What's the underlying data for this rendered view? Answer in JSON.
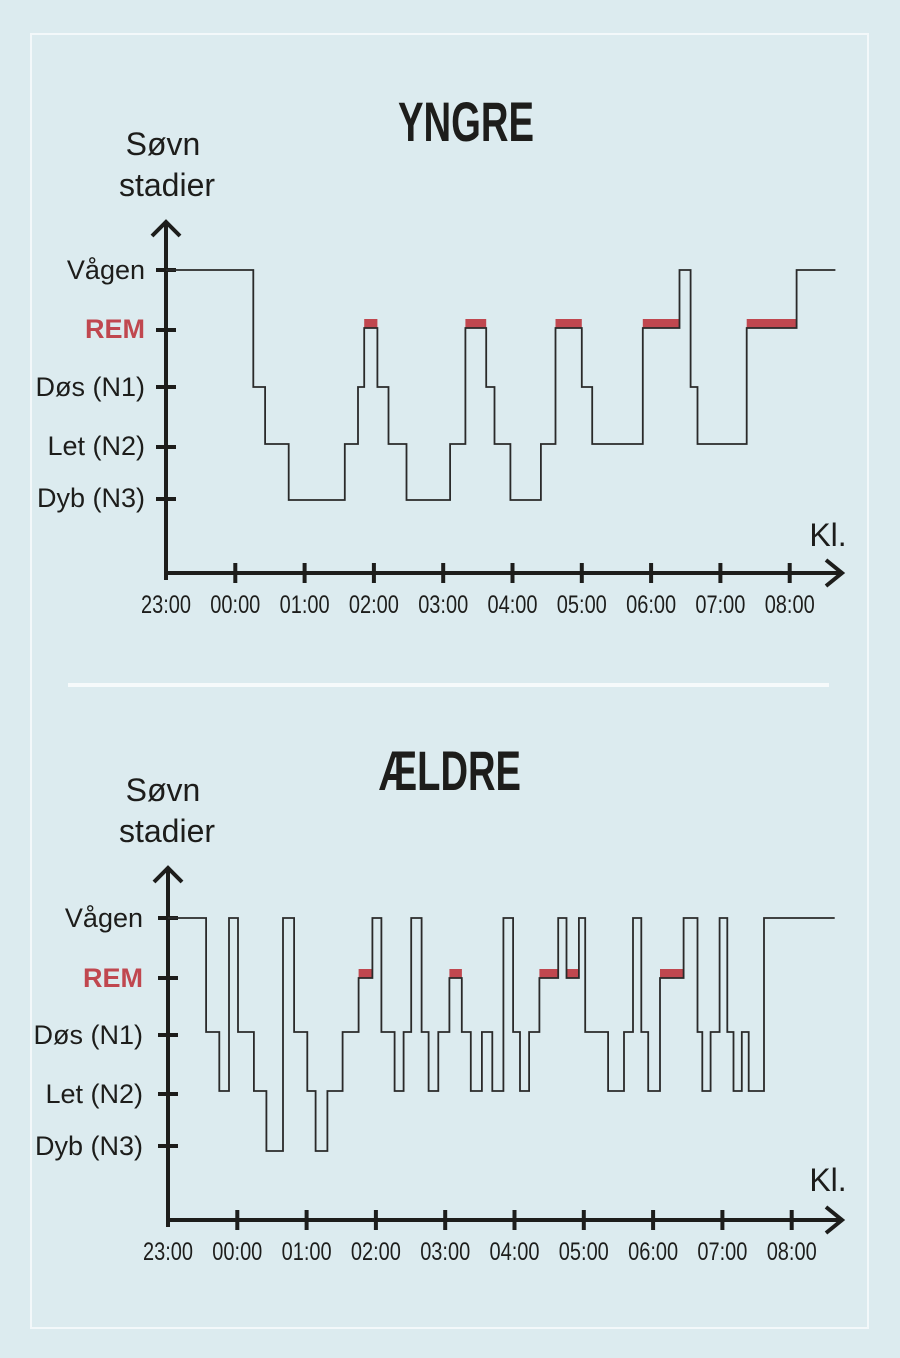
{
  "colors": {
    "background": "#dcebef",
    "ink": "#1d1d1b",
    "rem": "#c0474f",
    "line": "#2a2a2a",
    "divider": "#f6fafb"
  },
  "y_axis_title": [
    "Søvn",
    "stadier"
  ],
  "x_axis_label": "Kl.",
  "stage_labels": [
    "Vågen",
    "REM",
    "Døs (N1)",
    "Let (N2)",
    "Dyb (N3)"
  ],
  "time_ticks": [
    "23:00",
    "00:00",
    "01:00",
    "02:00",
    "03:00",
    "04:00",
    "05:00",
    "06:00",
    "07:00",
    "08:00"
  ],
  "chart_data": [
    {
      "type": "line",
      "title": "YNGRE",
      "ylabel": "Søvn stadier",
      "xlabel": "Kl.",
      "y_categories": [
        "Dyb (N3)",
        "Let (N2)",
        "Døs (N1)",
        "REM",
        "Vågen"
      ],
      "x_ticks": [
        "23:00",
        "00:00",
        "01:00",
        "02:00",
        "03:00",
        "04:00",
        "05:00",
        "06:00",
        "07:00",
        "08:00"
      ],
      "step": true,
      "segments_hours_from_2300": [
        {
          "start": 0.0,
          "end": 1.26,
          "stage": "Vågen"
        },
        {
          "start": 1.26,
          "end": 1.43,
          "stage": "Døs (N1)"
        },
        {
          "start": 1.43,
          "end": 1.77,
          "stage": "Let (N2)"
        },
        {
          "start": 1.77,
          "end": 2.58,
          "stage": "Dyb (N3)"
        },
        {
          "start": 2.58,
          "end": 2.77,
          "stage": "Let (N2)"
        },
        {
          "start": 2.77,
          "end": 2.86,
          "stage": "Døs (N1)"
        },
        {
          "start": 2.86,
          "end": 3.05,
          "stage": "REM"
        },
        {
          "start": 3.05,
          "end": 3.21,
          "stage": "Døs (N1)"
        },
        {
          "start": 3.21,
          "end": 3.47,
          "stage": "Let (N2)"
        },
        {
          "start": 3.47,
          "end": 4.1,
          "stage": "Dyb (N3)"
        },
        {
          "start": 4.1,
          "end": 4.32,
          "stage": "Let (N2)"
        },
        {
          "start": 4.32,
          "end": 4.62,
          "stage": "REM"
        },
        {
          "start": 4.62,
          "end": 4.74,
          "stage": "Døs (N1)"
        },
        {
          "start": 4.74,
          "end": 4.97,
          "stage": "Let (N2)"
        },
        {
          "start": 4.97,
          "end": 5.41,
          "stage": "Dyb (N3)"
        },
        {
          "start": 5.41,
          "end": 5.62,
          "stage": "Let (N2)"
        },
        {
          "start": 5.62,
          "end": 6.0,
          "stage": "REM"
        },
        {
          "start": 6.0,
          "end": 6.15,
          "stage": "Døs (N1)"
        },
        {
          "start": 6.15,
          "end": 6.88,
          "stage": "Let (N2)"
        },
        {
          "start": 6.88,
          "end": 7.41,
          "stage": "REM"
        },
        {
          "start": 7.41,
          "end": 7.57,
          "stage": "Vågen"
        },
        {
          "start": 7.57,
          "end": 7.67,
          "stage": "Døs (N1)"
        },
        {
          "start": 7.67,
          "end": 8.38,
          "stage": "Let (N2)"
        },
        {
          "start": 8.38,
          "end": 9.1,
          "stage": "REM"
        },
        {
          "start": 9.1,
          "end": 9.66,
          "stage": "Vågen"
        }
      ]
    },
    {
      "type": "line",
      "title": "ÆLDRE",
      "ylabel": "Søvn stadier",
      "xlabel": "Kl.",
      "y_categories": [
        "Dyb (N3)",
        "Let (N2)",
        "Døs (N1)",
        "REM",
        "Vågen"
      ],
      "x_ticks": [
        "23:00",
        "00:00",
        "01:00",
        "02:00",
        "03:00",
        "04:00",
        "05:00",
        "06:00",
        "07:00",
        "08:00"
      ],
      "step": true,
      "segments_hours_from_2300": [
        {
          "start": 0.0,
          "end": 0.55,
          "stage": "Vågen"
        },
        {
          "start": 0.55,
          "end": 0.74,
          "stage": "Døs (N1)"
        },
        {
          "start": 0.74,
          "end": 0.88,
          "stage": "Let (N2)"
        },
        {
          "start": 0.88,
          "end": 1.01,
          "stage": "Vågen"
        },
        {
          "start": 1.01,
          "end": 1.24,
          "stage": "Døs (N1)"
        },
        {
          "start": 1.24,
          "end": 1.42,
          "stage": "Let (N2)"
        },
        {
          "start": 1.42,
          "end": 1.66,
          "stage": "Dyb (N3)"
        },
        {
          "start": 1.66,
          "end": 1.82,
          "stage": "Vågen"
        },
        {
          "start": 1.82,
          "end": 2.01,
          "stage": "Døs (N1)"
        },
        {
          "start": 2.01,
          "end": 2.13,
          "stage": "Let (N2)"
        },
        {
          "start": 2.13,
          "end": 2.3,
          "stage": "Dyb (N3)"
        },
        {
          "start": 2.3,
          "end": 2.52,
          "stage": "Let (N2)"
        },
        {
          "start": 2.52,
          "end": 2.75,
          "stage": "Døs (N1)"
        },
        {
          "start": 2.75,
          "end": 2.95,
          "stage": "REM"
        },
        {
          "start": 2.95,
          "end": 3.08,
          "stage": "Vågen"
        },
        {
          "start": 3.08,
          "end": 3.27,
          "stage": "Døs (N1)"
        },
        {
          "start": 3.27,
          "end": 3.4,
          "stage": "Let (N2)"
        },
        {
          "start": 3.4,
          "end": 3.51,
          "stage": "Døs (N1)"
        },
        {
          "start": 3.51,
          "end": 3.66,
          "stage": "Vågen"
        },
        {
          "start": 3.66,
          "end": 3.76,
          "stage": "Døs (N1)"
        },
        {
          "start": 3.76,
          "end": 3.9,
          "stage": "Let (N2)"
        },
        {
          "start": 3.9,
          "end": 4.06,
          "stage": "Døs (N1)"
        },
        {
          "start": 4.06,
          "end": 4.24,
          "stage": "REM"
        },
        {
          "start": 4.24,
          "end": 4.37,
          "stage": "Døs (N1)"
        },
        {
          "start": 4.37,
          "end": 4.53,
          "stage": "Let (N2)"
        },
        {
          "start": 4.53,
          "end": 4.68,
          "stage": "Døs (N1)"
        },
        {
          "start": 4.68,
          "end": 4.84,
          "stage": "Let (N2)"
        },
        {
          "start": 4.84,
          "end": 4.98,
          "stage": "Vågen"
        },
        {
          "start": 4.98,
          "end": 5.08,
          "stage": "Døs (N1)"
        },
        {
          "start": 5.08,
          "end": 5.21,
          "stage": "Let (N2)"
        },
        {
          "start": 5.21,
          "end": 5.36,
          "stage": "Døs (N1)"
        },
        {
          "start": 5.36,
          "end": 5.63,
          "stage": "REM"
        },
        {
          "start": 5.63,
          "end": 5.75,
          "stage": "Vågen"
        },
        {
          "start": 5.75,
          "end": 5.93,
          "stage": "REM"
        },
        {
          "start": 5.93,
          "end": 6.02,
          "stage": "Vågen"
        },
        {
          "start": 6.02,
          "end": 6.35,
          "stage": "Døs (N1)"
        },
        {
          "start": 6.35,
          "end": 6.58,
          "stage": "Let (N2)"
        },
        {
          "start": 6.58,
          "end": 6.71,
          "stage": "Døs (N1)"
        },
        {
          "start": 6.71,
          "end": 6.83,
          "stage": "Vågen"
        },
        {
          "start": 6.83,
          "end": 6.93,
          "stage": "Døs (N1)"
        },
        {
          "start": 6.93,
          "end": 7.1,
          "stage": "Let (N2)"
        },
        {
          "start": 7.1,
          "end": 7.44,
          "stage": "REM"
        },
        {
          "start": 7.44,
          "end": 7.64,
          "stage": "Vågen"
        },
        {
          "start": 7.64,
          "end": 7.71,
          "stage": "Døs (N1)"
        },
        {
          "start": 7.71,
          "end": 7.83,
          "stage": "Let (N2)"
        },
        {
          "start": 7.83,
          "end": 7.96,
          "stage": "Døs (N1)"
        },
        {
          "start": 7.96,
          "end": 8.07,
          "stage": "Vågen"
        },
        {
          "start": 8.07,
          "end": 8.16,
          "stage": "Døs (N1)"
        },
        {
          "start": 8.16,
          "end": 8.28,
          "stage": "Let (N2)"
        },
        {
          "start": 8.28,
          "end": 8.38,
          "stage": "Døs (N1)"
        },
        {
          "start": 8.38,
          "end": 8.6,
          "stage": "Let (N2)"
        },
        {
          "start": 8.6,
          "end": 9.62,
          "stage": "Vågen"
        }
      ]
    }
  ]
}
